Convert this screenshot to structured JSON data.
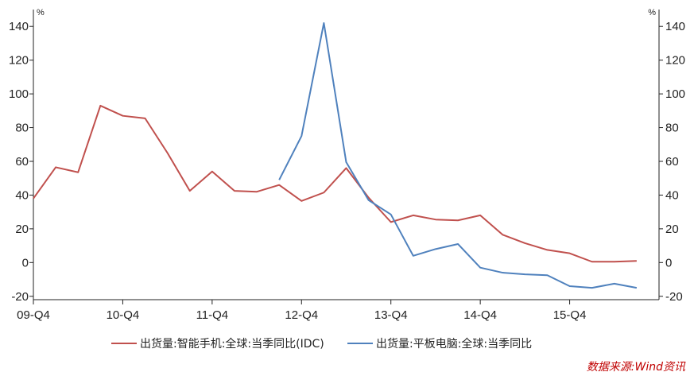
{
  "chart_data": {
    "type": "line",
    "x_positions": [
      "09-Q4",
      "10-Q1",
      "10-Q2",
      "10-Q3",
      "10-Q4",
      "11-Q1",
      "11-Q2",
      "11-Q3",
      "11-Q4",
      "12-Q1",
      "12-Q2",
      "12-Q3",
      "12-Q4",
      "13-Q1",
      "13-Q2",
      "13-Q3",
      "13-Q4",
      "14-Q1",
      "14-Q2",
      "14-Q3",
      "14-Q4",
      "15-Q1",
      "15-Q2",
      "15-Q3",
      "15-Q4",
      "16-Q1",
      "16-Q2",
      "16-Q3",
      "16-Q4"
    ],
    "x_tick_labels": [
      "09-Q4",
      "10-Q4",
      "11-Q4",
      "12-Q4",
      "13-Q4",
      "14-Q4",
      "15-Q4"
    ],
    "y_left": {
      "unit": "%",
      "ticks": [
        -20,
        0,
        20,
        40,
        60,
        80,
        100,
        120,
        140
      ],
      "range": [
        -22,
        150
      ]
    },
    "y_right": {
      "unit": "%",
      "ticks": [
        -20,
        0,
        20,
        40,
        60,
        80,
        100,
        120,
        140
      ],
      "range": [
        -22,
        150
      ]
    },
    "series": [
      {
        "name": "出货量:智能手机:全球:当季同比(IDC)",
        "color": "#c0504d",
        "values": [
          38,
          56.5,
          53.5,
          93,
          87,
          85.5,
          65,
          42.5,
          54,
          42.5,
          42,
          46,
          36.5,
          41.5,
          56,
          38.5,
          24,
          28,
          25.5,
          25,
          28,
          16.5,
          11.5,
          7.5,
          5.5,
          0.5,
          0.5,
          1,
          null
        ]
      },
      {
        "name": "出货量:平板电脑:全球:当季同比",
        "color": "#4f81bd",
        "values": [
          null,
          null,
          null,
          null,
          null,
          null,
          null,
          null,
          null,
          null,
          null,
          49,
          75,
          142,
          59.5,
          37,
          28.5,
          4,
          8,
          11,
          -3,
          -6,
          -7,
          -7.5,
          -14,
          -15,
          -12.5,
          -15,
          null
        ]
      }
    ],
    "legend_position": "bottom",
    "grid": false
  },
  "source_note": "数据来源:Wind资讯"
}
